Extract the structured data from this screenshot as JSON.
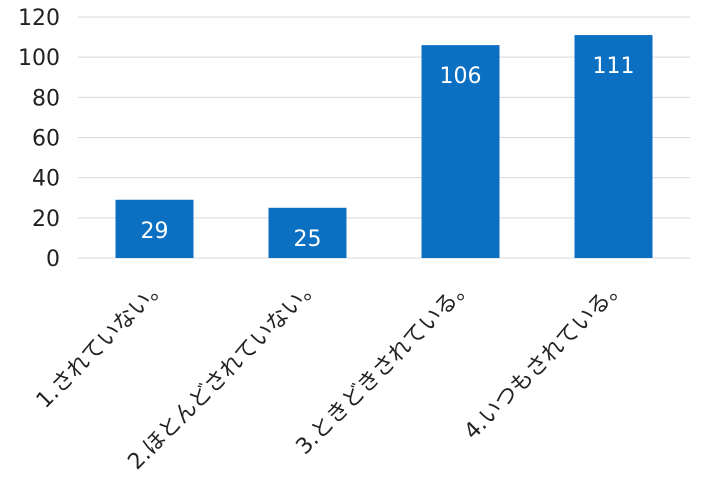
{
  "chart_data": {
    "type": "bar",
    "title": "",
    "xlabel": "",
    "ylabel": "",
    "categories": [
      "1.されていない。",
      "2.ほとんどされていない。",
      "3.ときどきされている。",
      "4.いつもされている。"
    ],
    "series": [
      {
        "values": [
          29,
          25,
          106,
          111
        ]
      }
    ],
    "ylim": [
      0,
      120
    ],
    "yticks": [
      0,
      20,
      40,
      60,
      80,
      100,
      120
    ],
    "data_labels": [
      "29",
      "25",
      "106",
      "111"
    ],
    "grid": true,
    "legend": "none",
    "bar_color": "#0b6fc2"
  }
}
